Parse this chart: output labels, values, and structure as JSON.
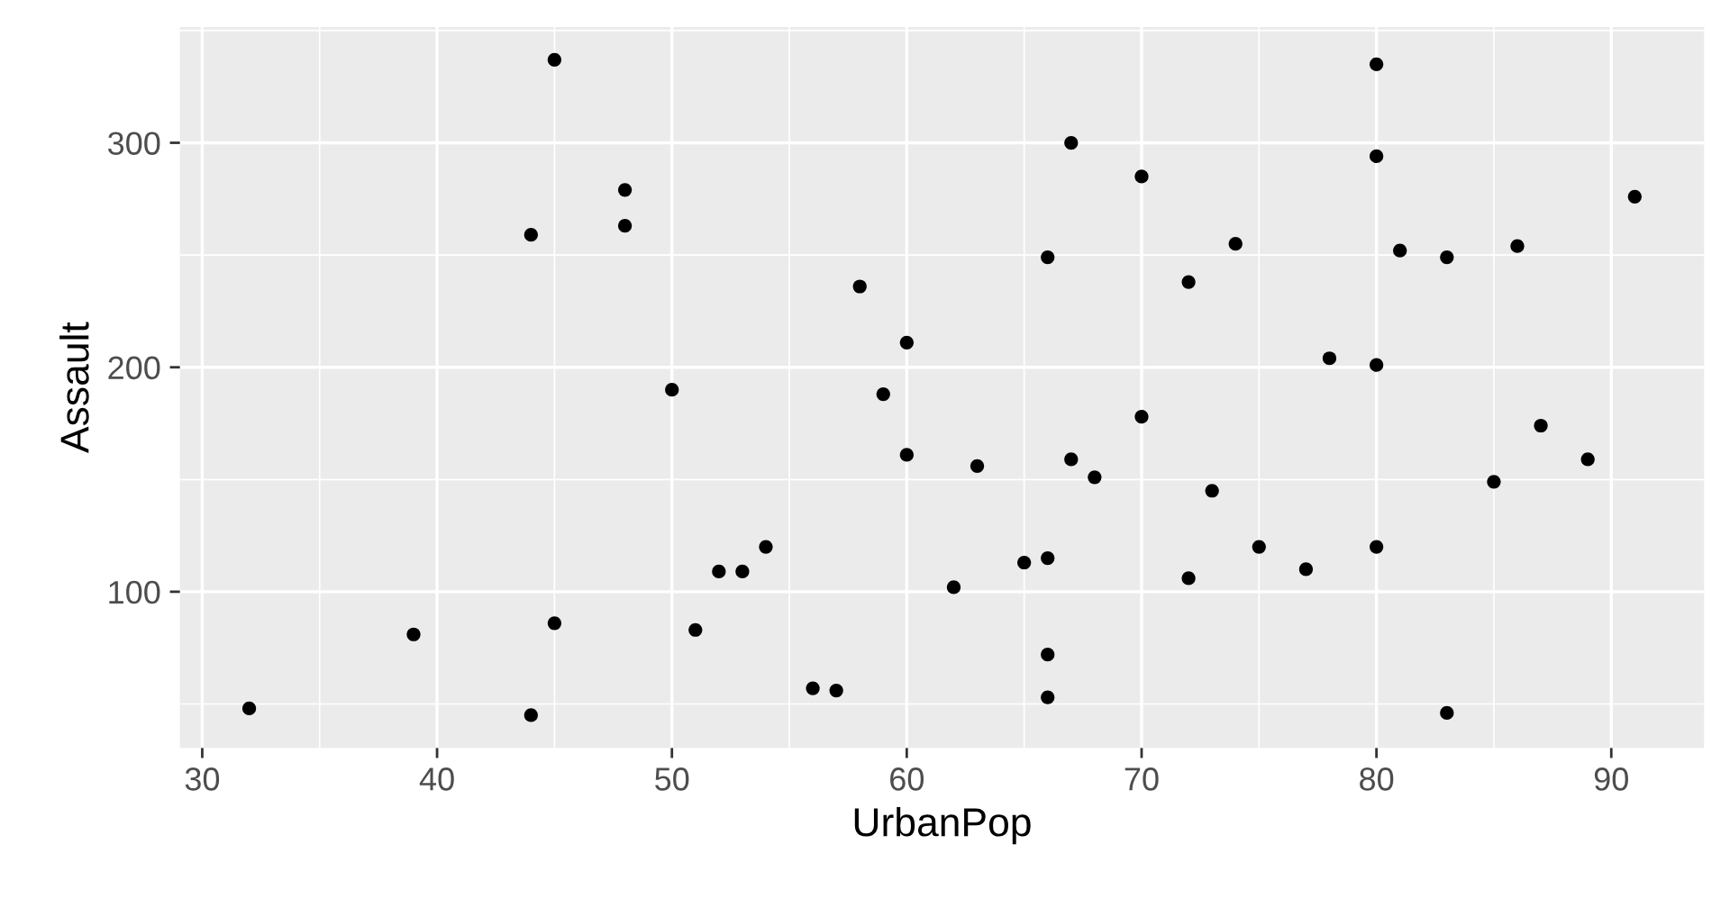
{
  "chart_data": {
    "type": "scatter",
    "xlabel": "UrbanPop",
    "ylabel": "Assault",
    "x": [
      58,
      48,
      80,
      50,
      91,
      78,
      77,
      72,
      80,
      60,
      83,
      54,
      83,
      65,
      57,
      66,
      52,
      66,
      51,
      67,
      85,
      74,
      66,
      44,
      70,
      53,
      62,
      81,
      56,
      89,
      70,
      86,
      45,
      44,
      75,
      68,
      67,
      72,
      87,
      48,
      45,
      59,
      80,
      80,
      32,
      63,
      73,
      39,
      66,
      60
    ],
    "series": [
      {
        "color": "#000000",
        "values": [
          236,
          263,
          294,
          190,
          276,
          204,
          110,
          238,
          335,
          211,
          46,
          120,
          249,
          113,
          56,
          115,
          109,
          249,
          83,
          300,
          149,
          255,
          72,
          259,
          178,
          109,
          102,
          252,
          57,
          159,
          285,
          254,
          337,
          45,
          120,
          151,
          159,
          106,
          174,
          279,
          86,
          188,
          201,
          120,
          48,
          156,
          145,
          81,
          53,
          161
        ]
      }
    ],
    "xlim": [
      29.05,
      93.95
    ],
    "ylim": [
      30.4,
      351.6
    ],
    "xticks": [
      30,
      40,
      50,
      60,
      70,
      80,
      90
    ],
    "yticks": [
      100,
      200,
      300
    ],
    "grid": true,
    "marker": "circle"
  }
}
